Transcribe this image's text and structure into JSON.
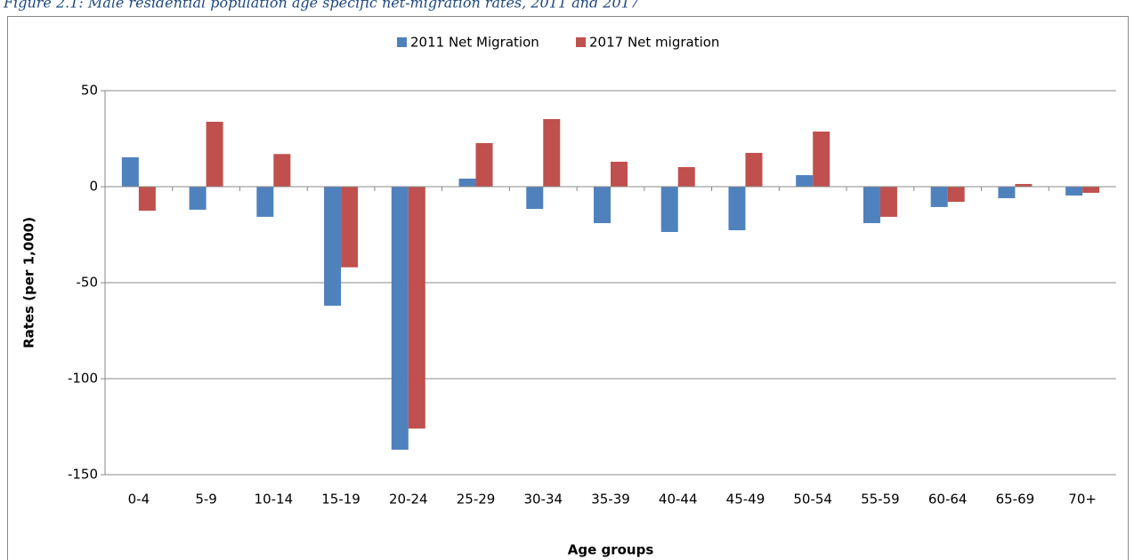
{
  "chart_data": {
    "type": "bar",
    "title": "Figure 2.1: Male residential population age specific net-migration rates, 2011 and 2017",
    "categories": [
      "0-4",
      "5-9",
      "10-14",
      "15-19",
      "20-24",
      "25-29",
      "30-34",
      "35-39",
      "40-44",
      "45-49",
      "50-54",
      "55-59",
      "60-64",
      "65-69",
      "70+"
    ],
    "series": [
      {
        "name": "2011 Net Migration",
        "color": "#4f81bd",
        "values": [
          15.3,
          -12,
          -15.7,
          -62,
          -137,
          4.2,
          -11.6,
          -19,
          -23.6,
          -22.7,
          6,
          -19,
          -10.6,
          -6,
          -4.6
        ]
      },
      {
        "name": "2017 Net migration",
        "color": "#c0504d",
        "values": [
          -12.5,
          33.8,
          17,
          -42,
          -126,
          22.7,
          35.2,
          13,
          10.2,
          17.6,
          28.7,
          -15.7,
          -7.9,
          1.4,
          -3.2
        ]
      }
    ],
    "ylim": [
      -150,
      50
    ],
    "yticks": [
      -150,
      -100,
      -50,
      0,
      50
    ],
    "y_label": "Rates (per 1,000)",
    "x_label": "Age groups",
    "grid": true,
    "legend": "top"
  }
}
